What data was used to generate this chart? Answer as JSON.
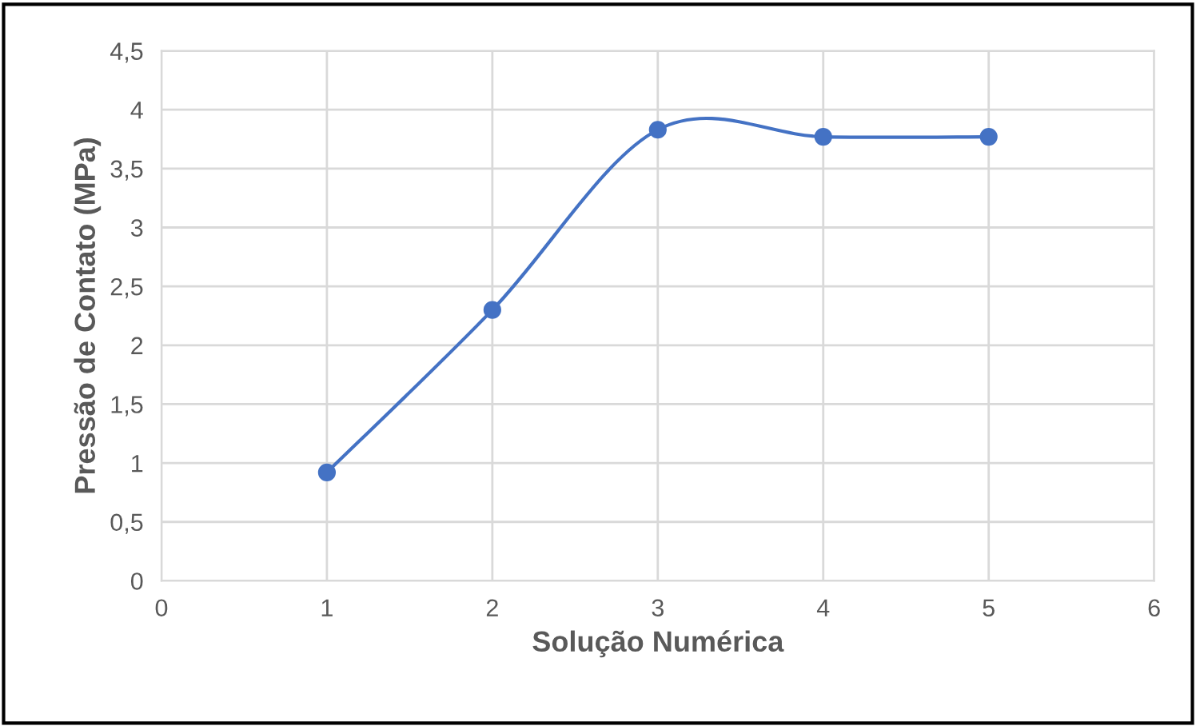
{
  "chart_data": {
    "type": "line",
    "xlabel": "Solução Numérica",
    "ylabel": "Pressão de Contato (MPa)",
    "x": [
      1,
      2,
      3,
      4,
      5
    ],
    "series": [
      {
        "color": "#4472c4",
        "values": [
          0.92,
          2.3,
          3.83,
          3.77,
          3.77
        ]
      }
    ],
    "xlim": [
      0,
      6
    ],
    "xticks": [
      0,
      1,
      2,
      3,
      4,
      5,
      6
    ],
    "ylim": [
      0,
      4.5
    ],
    "yticks": [
      0,
      {
        "value": 0.5,
        "label": "0,5"
      },
      1,
      {
        "value": 1.5,
        "label": "1,5"
      },
      2,
      {
        "value": 2.5,
        "label": "2,5"
      },
      3,
      {
        "value": 3.5,
        "label": "3,5"
      },
      4,
      {
        "value": 4.5,
        "label": "4,5"
      }
    ],
    "grid": true,
    "marker": "circle",
    "line_style": "solid",
    "legend": false
  }
}
